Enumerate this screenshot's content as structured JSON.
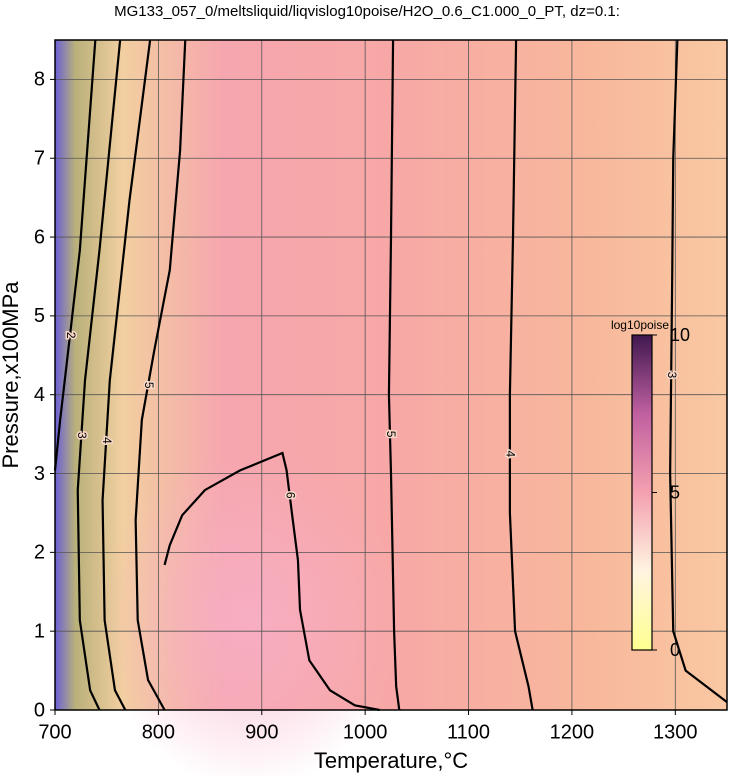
{
  "chart_data": {
    "type": "contour",
    "title": "MG133_057_0/meltsliquid/liqvislog10poise/H2O_0.6_C1.000_0_PT, dz=0.1:",
    "x_label": "Temperature,°C",
    "y_label": "Pressure,x100MPa",
    "xlim": [
      700,
      1350
    ],
    "ylim": [
      0,
      8.5
    ],
    "xticks": [
      700,
      800,
      900,
      1000,
      1100,
      1200,
      1300
    ],
    "yticks": [
      0,
      1,
      2,
      3,
      4,
      5,
      6,
      7,
      8
    ],
    "grid": true,
    "contours": [
      {
        "level": 2,
        "x": [
          739,
          724,
          705,
          700
        ],
        "y": [
          8.5,
          5.83,
          3.68,
          3.04
        ]
      },
      {
        "level": 3,
        "x": [
          763,
          743,
          729,
          722,
          724,
          734,
          743
        ],
        "y": [
          8.5,
          5.83,
          4.18,
          2.79,
          1.14,
          0.25,
          0
        ]
      },
      {
        "level": 4,
        "x": [
          792,
          772,
          753,
          746,
          748,
          758,
          768
        ],
        "y": [
          8.5,
          6.46,
          4.18,
          2.66,
          1.14,
          0.25,
          0
        ]
      },
      {
        "level": 5,
        "x": [
          826,
          821,
          811,
          796,
          784,
          778,
          780,
          790,
          806
        ],
        "y": [
          8.5,
          7.1,
          5.58,
          4.56,
          3.68,
          2.41,
          1.14,
          0.38,
          0
        ]
      },
      {
        "level": 6,
        "x": [
          806,
          811,
          823,
          845,
          879,
          920,
          924,
          930,
          935,
          937,
          946,
          966,
          990,
          1014
        ],
        "y": [
          1.84,
          2.09,
          2.47,
          2.79,
          3.04,
          3.26,
          3.04,
          2.41,
          1.9,
          1.27,
          0.63,
          0.25,
          0.06,
          0
        ]
      },
      {
        "level": 5,
        "x": [
          1027,
          1025,
          1023,
          1025,
          1028,
          1030,
          1033
        ],
        "y": [
          8.5,
          6,
          4,
          3,
          1,
          0.3,
          0
        ]
      },
      {
        "level": 4,
        "x": [
          1146,
          1143,
          1140,
          1140,
          1145,
          1158,
          1162
        ],
        "y": [
          8.5,
          6,
          4,
          2.5,
          1,
          0.3,
          0
        ]
      },
      {
        "level": 3,
        "x": [
          1302,
          1298,
          1297,
          1295,
          1298,
          1310,
          1350
        ],
        "y": [
          8.5,
          7,
          5.5,
          3,
          1,
          0.5,
          0.1
        ]
      }
    ],
    "colorbar": {
      "label": "log10poise",
      "lim": [
        0,
        10
      ],
      "ticks": [
        0,
        5,
        10
      ],
      "colors": [
        "#ffff90",
        "#fff4e0",
        "#f4a0b0",
        "#c060a0",
        "#401850"
      ]
    }
  }
}
